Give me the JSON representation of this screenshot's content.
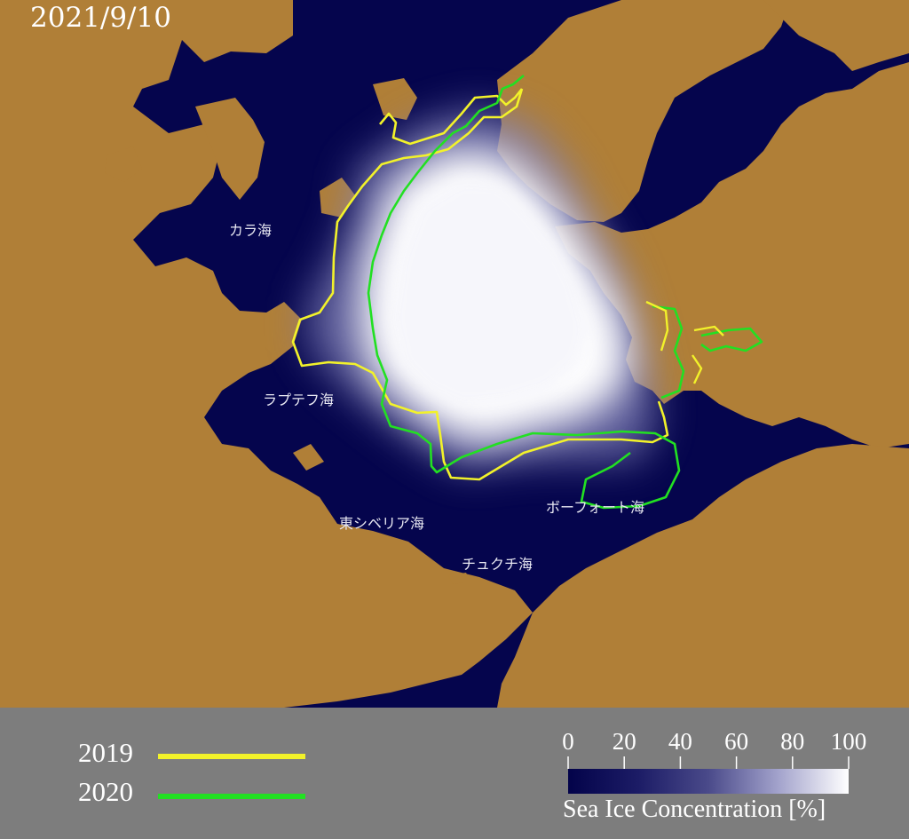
{
  "date": "2021/9/10",
  "map": {
    "colors": {
      "ocean": "#05054d",
      "land": "#b07f37",
      "ice": "#ffffff"
    },
    "sea_labels": {
      "kara": "カラ海",
      "laptev": "ラプテフ海",
      "east_siberian": "東シベリア海",
      "chukchi": "チュクチ海",
      "beaufort": "ボーフォート海"
    }
  },
  "legend": {
    "years": [
      {
        "label": "2019",
        "color": "#f2f22a"
      },
      {
        "label": "2020",
        "color": "#22e022"
      }
    ],
    "colorbar": {
      "ticks": [
        "0",
        "20",
        "40",
        "60",
        "80",
        "100"
      ],
      "title": "Sea Ice Concentration [%]",
      "gradient_start": "#03034a",
      "gradient_end": "#ffffff"
    }
  }
}
